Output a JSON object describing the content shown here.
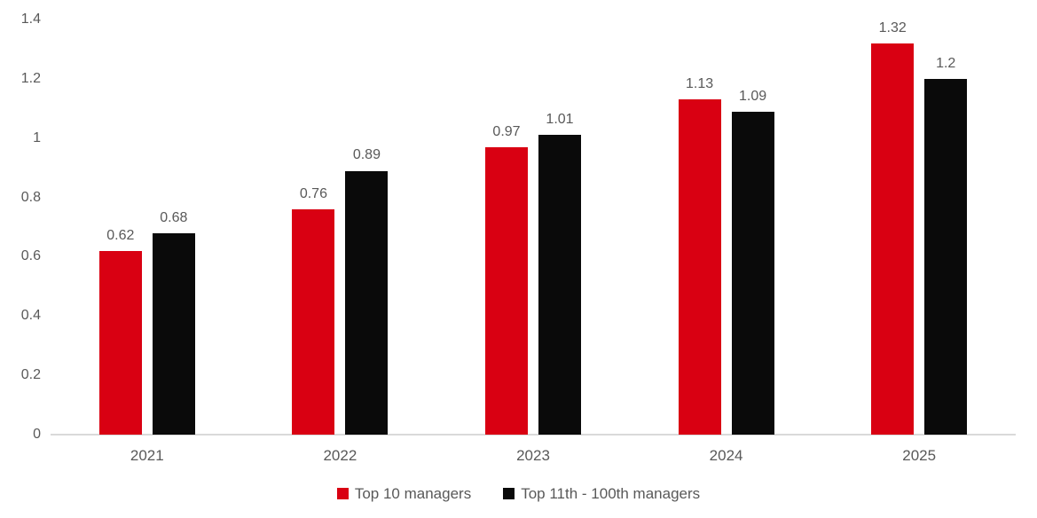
{
  "chart_data": {
    "type": "bar",
    "title": "",
    "xlabel": "",
    "ylabel": "",
    "categories": [
      "2021",
      "2022",
      "2023",
      "2024",
      "2025"
    ],
    "series": [
      {
        "name": "Top 10 managers",
        "color": "#d90012",
        "values": [
          0.62,
          0.76,
          0.97,
          1.13,
          1.32
        ],
        "labels": [
          "0.62",
          "0.76",
          "0.97",
          "1.13",
          "1.32"
        ]
      },
      {
        "name": "Top 11th - 100th managers",
        "color": "#0a0a0a",
        "values": [
          0.68,
          0.89,
          1.01,
          1.09,
          1.2
        ],
        "labels": [
          "0.68",
          "0.89",
          "1.01",
          "1.09",
          "1.2"
        ]
      }
    ],
    "ylim": [
      0,
      1.4
    ],
    "y_ticks": {
      "values": [
        0,
        0.2,
        0.4,
        0.6,
        0.8,
        1,
        1.2,
        1.4
      ],
      "labels": [
        "0",
        "0.2",
        "0.4",
        "0.6",
        "0.8",
        "1",
        "1.2",
        "1.4"
      ]
    },
    "grid": false,
    "legend_position": "bottom",
    "colors": {
      "axis_line": "#d9d9d9",
      "text": "#595959",
      "background": "#ffffff"
    }
  }
}
